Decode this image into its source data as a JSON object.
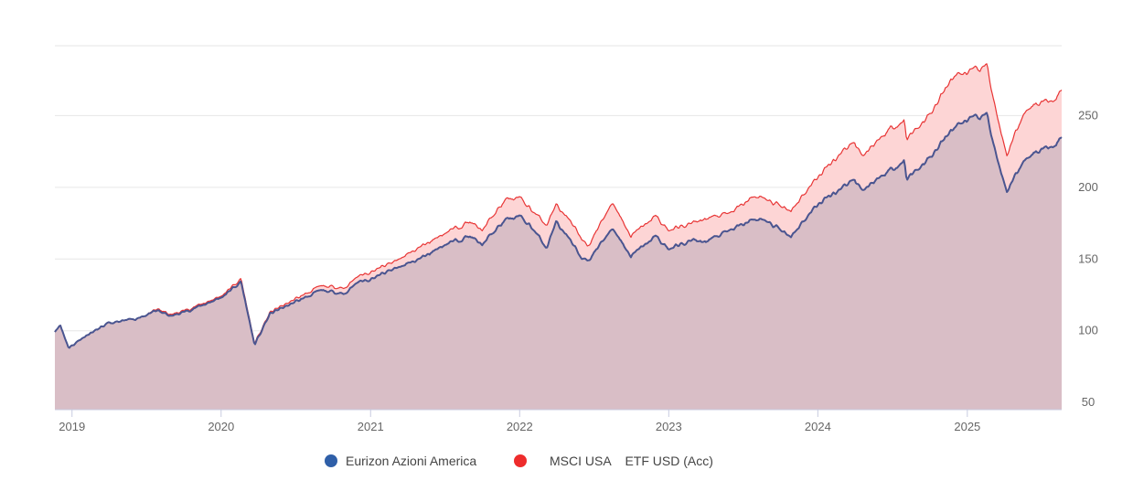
{
  "chart_data": {
    "type": "area",
    "title": "",
    "xlabel": "",
    "ylabel": "",
    "x_ticks": [
      "2019",
      "2020",
      "2021",
      "2022",
      "2023",
      "2024",
      "2025"
    ],
    "y_ticks": [
      50,
      100,
      150,
      200,
      250
    ],
    "xlim": [
      "2018-11-20",
      "2025-08-20"
    ],
    "ylim": [
      45,
      300
    ],
    "grid": true,
    "legend_position": "bottom-center",
    "series": [
      {
        "name": "Eurizon Azioni America",
        "color": "#2f5fa8",
        "line_color": "#4a5590",
        "fill_color": "#d9bec6",
        "points": [
          [
            "2018-11-20",
            100
          ],
          [
            "2018-12-03",
            104
          ],
          [
            "2018-12-24",
            88
          ],
          [
            "2019-01-31",
            96
          ],
          [
            "2019-03-31",
            105
          ],
          [
            "2019-05-31",
            108
          ],
          [
            "2019-07-31",
            114
          ],
          [
            "2019-08-31",
            110
          ],
          [
            "2019-10-31",
            116
          ],
          [
            "2019-12-31",
            123
          ],
          [
            "2020-02-19",
            134
          ],
          [
            "2020-03-23",
            90
          ],
          [
            "2020-04-30",
            112
          ],
          [
            "2020-06-30",
            120
          ],
          [
            "2020-08-31",
            128
          ],
          [
            "2020-10-31",
            126
          ],
          [
            "2020-11-30",
            134
          ],
          [
            "2020-12-31",
            136
          ],
          [
            "2021-02-28",
            143
          ],
          [
            "2021-04-30",
            150
          ],
          [
            "2021-06-30",
            160
          ],
          [
            "2021-08-31",
            166
          ],
          [
            "2021-09-30",
            160
          ],
          [
            "2021-11-30",
            178
          ],
          [
            "2021-12-31",
            180
          ],
          [
            "2022-01-31",
            172
          ],
          [
            "2022-03-08",
            158
          ],
          [
            "2022-03-31",
            176
          ],
          [
            "2022-05-31",
            152
          ],
          [
            "2022-06-16",
            148
          ],
          [
            "2022-08-16",
            172
          ],
          [
            "2022-09-30",
            152
          ],
          [
            "2022-11-30",
            166
          ],
          [
            "2022-12-31",
            157
          ],
          [
            "2023-02-28",
            163
          ],
          [
            "2023-03-31",
            162
          ],
          [
            "2023-05-31",
            170
          ],
          [
            "2023-07-31",
            178
          ],
          [
            "2023-08-31",
            176
          ],
          [
            "2023-10-27",
            166
          ],
          [
            "2023-12-31",
            188
          ],
          [
            "2024-02-29",
            200
          ],
          [
            "2024-03-31",
            206
          ],
          [
            "2024-04-19",
            198
          ],
          [
            "2024-06-30",
            213
          ],
          [
            "2024-07-31",
            218
          ],
          [
            "2024-08-05",
            206
          ],
          [
            "2024-09-30",
            220
          ],
          [
            "2024-11-30",
            242
          ],
          [
            "2024-12-31",
            247
          ],
          [
            "2025-02-19",
            250
          ],
          [
            "2025-03-13",
            222
          ],
          [
            "2025-04-08",
            195
          ],
          [
            "2025-04-30",
            210
          ],
          [
            "2025-05-31",
            222
          ],
          [
            "2025-07-31",
            230
          ],
          [
            "2025-08-20",
            235
          ]
        ]
      },
      {
        "name": "MSCI USA    ETF USD (Acc)",
        "color": "#ee2c2c",
        "line_color": "#e83535",
        "fill_color": "#fdd5d5",
        "points": [
          [
            "2018-11-20",
            100
          ],
          [
            "2018-12-03",
            102
          ],
          [
            "2018-12-24",
            87
          ],
          [
            "2019-01-31",
            95
          ],
          [
            "2019-03-31",
            104
          ],
          [
            "2019-05-31",
            107
          ],
          [
            "2019-07-31",
            115
          ],
          [
            "2019-08-31",
            111
          ],
          [
            "2019-10-31",
            117
          ],
          [
            "2019-12-31",
            124
          ],
          [
            "2020-02-19",
            136
          ],
          [
            "2020-03-23",
            91
          ],
          [
            "2020-04-30",
            113
          ],
          [
            "2020-06-30",
            122
          ],
          [
            "2020-08-31",
            131
          ],
          [
            "2020-10-31",
            130
          ],
          [
            "2020-11-30",
            138
          ],
          [
            "2020-12-31",
            141
          ],
          [
            "2021-02-28",
            148
          ],
          [
            "2021-04-30",
            158
          ],
          [
            "2021-06-30",
            168
          ],
          [
            "2021-08-31",
            176
          ],
          [
            "2021-09-30",
            170
          ],
          [
            "2021-11-30",
            192
          ],
          [
            "2021-12-31",
            193
          ],
          [
            "2022-01-31",
            184
          ],
          [
            "2022-03-08",
            174
          ],
          [
            "2022-03-31",
            188
          ],
          [
            "2022-05-31",
            166
          ],
          [
            "2022-06-16",
            158
          ],
          [
            "2022-08-16",
            190
          ],
          [
            "2022-09-30",
            166
          ],
          [
            "2022-11-30",
            180
          ],
          [
            "2022-12-31",
            170
          ],
          [
            "2023-02-28",
            175
          ],
          [
            "2023-03-31",
            178
          ],
          [
            "2023-05-31",
            182
          ],
          [
            "2023-07-31",
            194
          ],
          [
            "2023-08-31",
            191
          ],
          [
            "2023-10-27",
            184
          ],
          [
            "2023-12-31",
            207
          ],
          [
            "2024-02-29",
            225
          ],
          [
            "2024-03-31",
            232
          ],
          [
            "2024-04-19",
            222
          ],
          [
            "2024-06-30",
            242
          ],
          [
            "2024-07-31",
            246
          ],
          [
            "2024-08-05",
            234
          ],
          [
            "2024-09-30",
            250
          ],
          [
            "2024-11-30",
            278
          ],
          [
            "2024-12-31",
            280
          ],
          [
            "2025-02-19",
            284
          ],
          [
            "2025-03-13",
            252
          ],
          [
            "2025-04-08",
            220
          ],
          [
            "2025-04-30",
            240
          ],
          [
            "2025-05-31",
            256
          ],
          [
            "2025-07-31",
            262
          ],
          [
            "2025-08-20",
            268
          ]
        ]
      }
    ]
  }
}
